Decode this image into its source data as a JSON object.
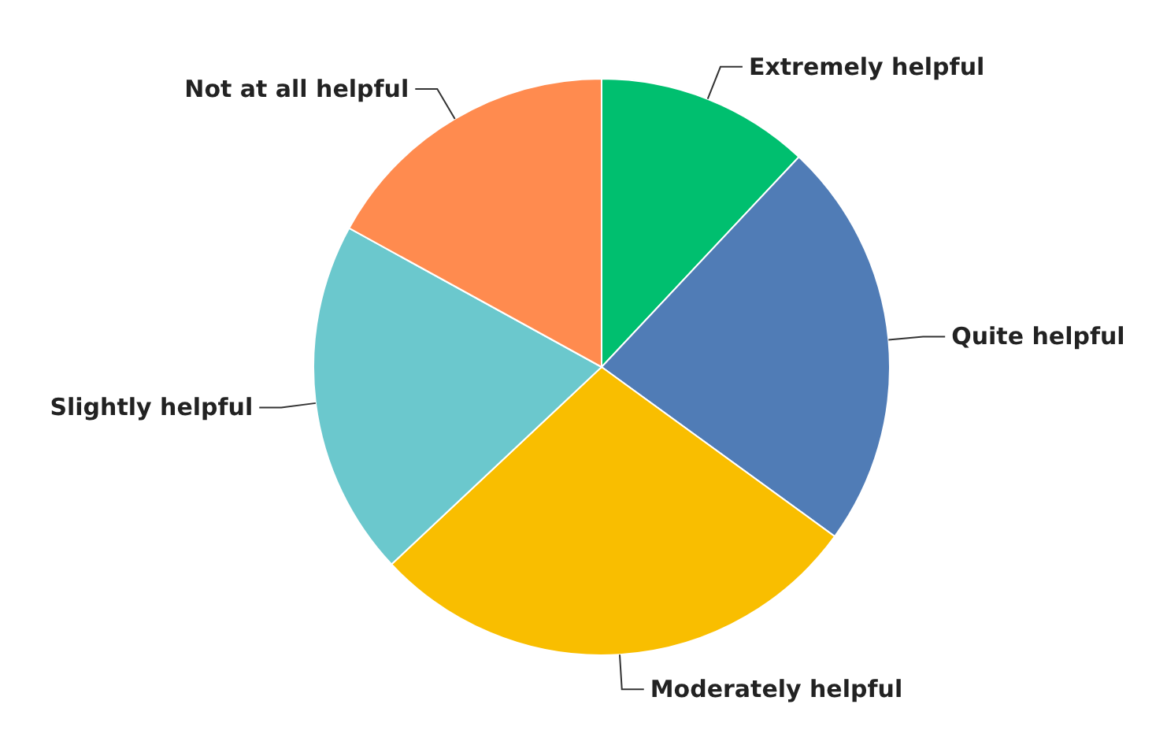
{
  "chart_data": {
    "type": "pie",
    "categories": [
      "Extremely helpful",
      "Quite helpful",
      "Moderately helpful",
      "Slightly helpful",
      "Not at all helpful"
    ],
    "values": [
      12,
      23,
      28,
      20,
      17
    ],
    "colors": [
      "#00bf6f",
      "#507cb6",
      "#f9be00",
      "#6bc8cd",
      "#ff8b4f"
    ],
    "legend": false
  }
}
